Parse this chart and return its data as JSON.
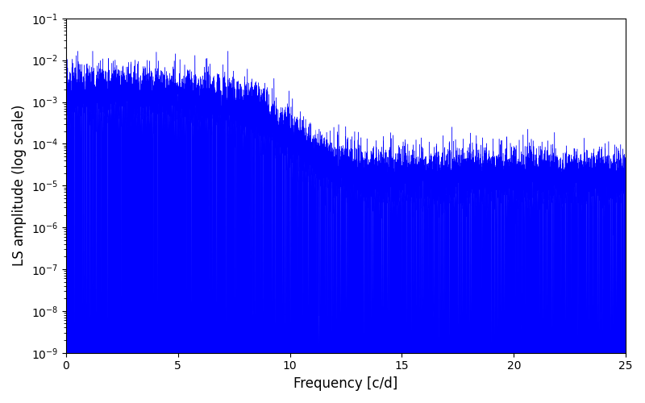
{
  "title": "",
  "xlabel": "Frequency [c/d]",
  "ylabel": "LS amplitude (log scale)",
  "xlim": [
    0,
    25
  ],
  "ylim": [
    1e-09,
    0.1
  ],
  "color": "#0000ff",
  "background_color": "#ffffff",
  "figsize": [
    8.0,
    5.0
  ],
  "dpi": 100,
  "yscale": "log",
  "n_points": 10000,
  "peak_amplitude": 0.015,
  "seed": 42
}
